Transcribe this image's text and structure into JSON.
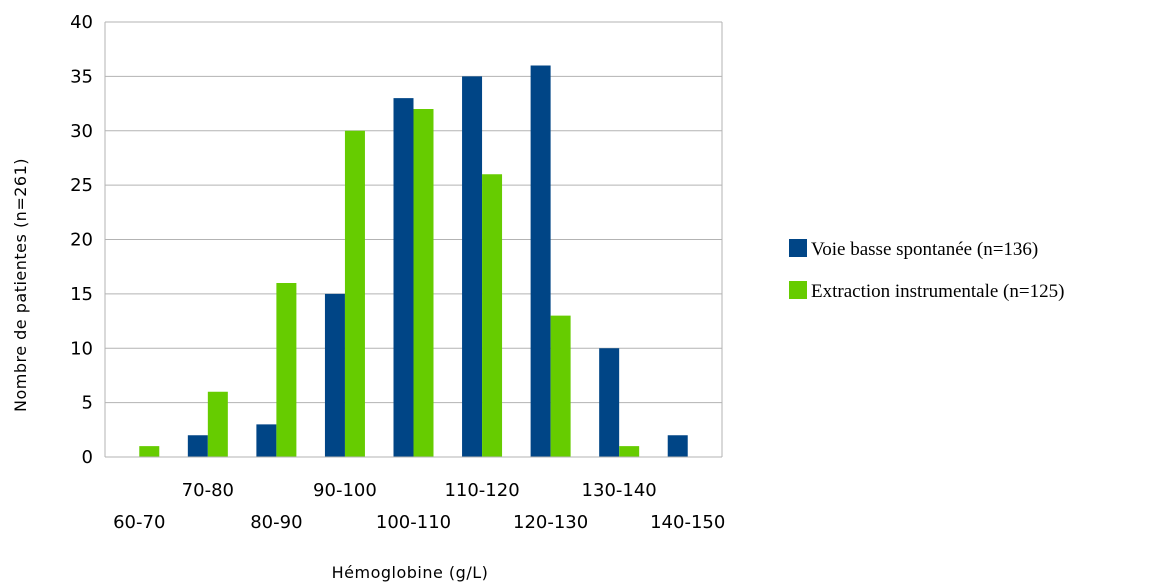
{
  "chart_data": {
    "type": "bar",
    "title": "",
    "xlabel": "Hémoglobine (g/L)",
    "ylabel": "Nombre de patientes (n=261)",
    "categories": [
      "60-70",
      "70-80",
      "80-90",
      "90-100",
      "100-110",
      "110-120",
      "120-130",
      "130-140",
      "140-150"
    ],
    "series": [
      {
        "name": "Voie basse spontanée (n=136)",
        "color": "#004586",
        "values": [
          0,
          2,
          3,
          15,
          33,
          35,
          36,
          10,
          2
        ]
      },
      {
        "name": "Extraction instrumentale (n=125)",
        "color": "#66cc00",
        "values": [
          1,
          6,
          16,
          30,
          32,
          26,
          13,
          1,
          0
        ]
      }
    ],
    "ylim": [
      0,
      40
    ],
    "yticks": [
      0,
      5,
      10,
      15,
      20,
      25,
      30,
      35,
      40
    ],
    "grid": true,
    "legend_position": "right",
    "gridline_color": "#b3b3b3"
  }
}
